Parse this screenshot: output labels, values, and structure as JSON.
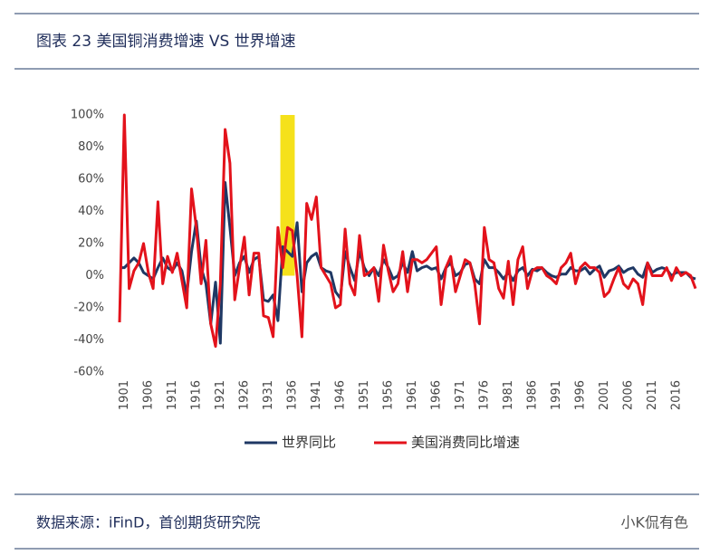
{
  "header": {
    "title": "图表 23 美国铜消费增速 VS 世界增速"
  },
  "footer": {
    "source": "数据来源：iFinD，首创期货研究院",
    "watermark": "小K侃有色"
  },
  "chart_data": {
    "type": "line",
    "x": [
      1900,
      1901,
      1902,
      1903,
      1904,
      1905,
      1906,
      1907,
      1908,
      1909,
      1910,
      1911,
      1912,
      1913,
      1914,
      1915,
      1916,
      1917,
      1918,
      1919,
      1920,
      1921,
      1922,
      1923,
      1924,
      1925,
      1926,
      1927,
      1928,
      1929,
      1930,
      1931,
      1932,
      1933,
      1934,
      1935,
      1936,
      1937,
      1938,
      1939,
      1940,
      1941,
      1942,
      1943,
      1944,
      1945,
      1946,
      1947,
      1948,
      1949,
      1950,
      1951,
      1952,
      1953,
      1954,
      1955,
      1956,
      1957,
      1958,
      1959,
      1960,
      1961,
      1962,
      1963,
      1964,
      1965,
      1966,
      1967,
      1968,
      1969,
      1970,
      1971,
      1972,
      1973,
      1974,
      1975,
      1976,
      1977,
      1978,
      1979,
      1980,
      1981,
      1982,
      1983,
      1984,
      1985,
      1986,
      1987,
      1988,
      1989,
      1990,
      1991,
      1992,
      1993,
      1994,
      1995,
      1996,
      1997,
      1998,
      1999,
      2000,
      2001,
      2002,
      2003,
      2004,
      2005,
      2006,
      2007,
      2008,
      2009,
      2010,
      2011,
      2012,
      2013,
      2014,
      2015,
      2016,
      2017,
      2018,
      2019,
      2020
    ],
    "series": [
      {
        "name": "世界同比",
        "color": "#1f3864",
        "values": [
          5,
          5,
          8,
          11,
          8,
          2,
          0,
          -2,
          5,
          11,
          5,
          3,
          8,
          3,
          -12,
          15,
          34,
          5,
          -5,
          -30,
          -4,
          -42,
          58,
          30,
          0,
          8,
          12,
          2,
          10,
          12,
          -15,
          -16,
          -12,
          -28,
          18,
          15,
          12,
          33,
          -10,
          8,
          12,
          14,
          5,
          3,
          2,
          -10,
          -14,
          15,
          5,
          -3,
          15,
          5,
          0,
          5,
          0,
          10,
          5,
          -2,
          0,
          8,
          2,
          15,
          3,
          5,
          6,
          4,
          5,
          -2,
          5,
          8,
          0,
          2,
          7,
          8,
          -2,
          -5,
          10,
          5,
          5,
          2,
          -2,
          2,
          -3,
          3,
          5,
          0,
          4,
          3,
          5,
          2,
          0,
          -1,
          1,
          1,
          5,
          3,
          3,
          5,
          1,
          4,
          6,
          -1,
          3,
          4,
          6,
          2,
          4,
          5,
          1,
          -1,
          8,
          2,
          4,
          5,
          4,
          0,
          2,
          2,
          2,
          -1,
          -2
        ]
      },
      {
        "name": "美国消费同比增速",
        "color": "#e3121b",
        "values": [
          -29,
          100,
          -8,
          3,
          8,
          20,
          2,
          -8,
          46,
          -5,
          12,
          2,
          14,
          -3,
          -20,
          54,
          30,
          -5,
          22,
          -30,
          -44,
          -5,
          91,
          70,
          -15,
          5,
          24,
          -12,
          14,
          14,
          -25,
          -26,
          -38,
          30,
          5,
          30,
          28,
          0,
          -38,
          45,
          35,
          49,
          5,
          0,
          -5,
          -20,
          -18,
          29,
          -5,
          -12,
          25,
          0,
          2,
          5,
          -16,
          19,
          3,
          -10,
          -5,
          15,
          -10,
          10,
          10,
          8,
          10,
          14,
          18,
          -18,
          5,
          12,
          -10,
          0,
          10,
          8,
          -5,
          -30,
          30,
          10,
          8,
          -8,
          -14,
          9,
          -18,
          10,
          18,
          -8,
          3,
          5,
          5,
          0,
          -2,
          -5,
          5,
          8,
          14,
          -5,
          5,
          8,
          5,
          5,
          2,
          -13,
          -10,
          -2,
          5,
          -5,
          -8,
          -2,
          -5,
          -18,
          8,
          0,
          0,
          0,
          5,
          -3,
          5,
          0,
          2,
          0,
          -8
        ]
      }
    ],
    "highlight": {
      "x": [
        1933.5,
        1936.5
      ],
      "y": [
        0,
        100
      ],
      "color": "#f5e11b"
    },
    "xlim": [
      1900,
      2020
    ],
    "xticks": [
      1901,
      1906,
      1911,
      1916,
      1921,
      1926,
      1931,
      1936,
      1941,
      1946,
      1951,
      1956,
      1961,
      1966,
      1971,
      1976,
      1981,
      1986,
      1991,
      1996,
      2001,
      2006,
      2011,
      2016
    ],
    "ylim": [
      -60,
      100
    ],
    "yticks": [
      {
        "value": 100,
        "label": "100%"
      },
      {
        "value": 80,
        "label": "80%"
      },
      {
        "value": 60,
        "label": "60%"
      },
      {
        "value": 40,
        "label": "40%"
      },
      {
        "value": 20,
        "label": "20%"
      },
      {
        "value": 0,
        "label": "0%"
      },
      {
        "value": -20,
        "label": "-20%"
      },
      {
        "value": -40,
        "label": "-40%"
      },
      {
        "value": -60,
        "label": "-60%"
      }
    ],
    "legend": "bottom"
  }
}
